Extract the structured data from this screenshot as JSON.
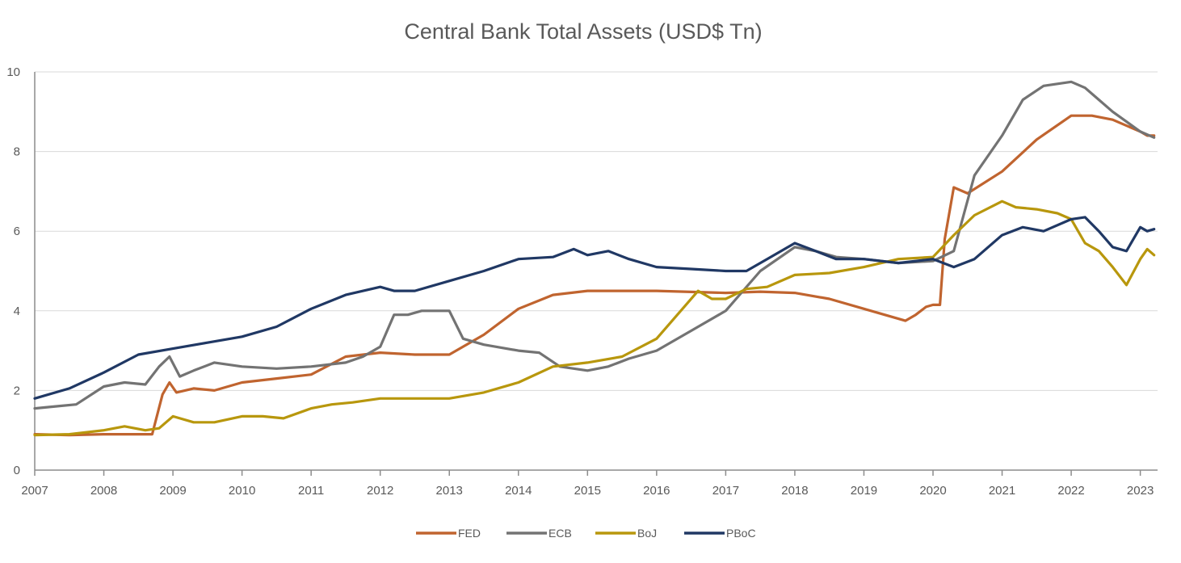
{
  "chart_data": {
    "type": "line",
    "title": "Central Bank Total Assets (USD$ Tn)",
    "xlabel": "",
    "ylabel": "",
    "xlim": [
      2007.0,
      2023.25
    ],
    "ylim": [
      0,
      10
    ],
    "yticks": [
      0,
      2,
      4,
      6,
      8,
      10
    ],
    "xticks": [
      2007,
      2008,
      2009,
      2010,
      2011,
      2012,
      2013,
      2014,
      2015,
      2016,
      2017,
      2018,
      2019,
      2020,
      2021,
      2022,
      2023
    ],
    "xtick_labels": [
      "2007",
      "2008",
      "2009",
      "2010",
      "2011",
      "2012",
      "2013",
      "2014",
      "2015",
      "2016",
      "2017",
      "2018",
      "2019",
      "2020",
      "2021",
      "2022",
      "2023"
    ],
    "ytick_labels": [
      "0",
      "2",
      "4",
      "6",
      "8",
      "10"
    ],
    "grid": true,
    "legend_position": "bottom",
    "series": [
      {
        "name": "FED",
        "color": "#c0642f",
        "x": [
          2007.0,
          2007.5,
          2008.0,
          2008.5,
          2008.7,
          2008.85,
          2008.95,
          2009.05,
          2009.3,
          2009.6,
          2010.0,
          2010.5,
          2011.0,
          2011.5,
          2012.0,
          2012.5,
          2013.0,
          2013.5,
          2014.0,
          2014.5,
          2015.0,
          2016.0,
          2017.0,
          2017.5,
          2018.0,
          2018.5,
          2019.0,
          2019.3,
          2019.6,
          2019.75,
          2019.9,
          2020.0,
          2020.1,
          2020.17,
          2020.3,
          2020.5,
          2021.0,
          2021.5,
          2022.0,
          2022.3,
          2022.6,
          2023.0,
          2023.1,
          2023.2
        ],
        "values": [
          0.9,
          0.88,
          0.9,
          0.9,
          0.9,
          1.9,
          2.2,
          1.95,
          2.05,
          2.0,
          2.2,
          2.3,
          2.4,
          2.85,
          2.95,
          2.9,
          2.9,
          3.4,
          4.05,
          4.4,
          4.5,
          4.5,
          4.45,
          4.48,
          4.45,
          4.3,
          4.05,
          3.9,
          3.75,
          3.9,
          4.1,
          4.15,
          4.15,
          5.8,
          7.1,
          6.95,
          7.5,
          8.3,
          8.9,
          8.9,
          8.8,
          8.5,
          8.4,
          8.4
        ]
      },
      {
        "name": "ECB",
        "color": "#737373",
        "x": [
          2007.0,
          2007.3,
          2007.6,
          2008.0,
          2008.3,
          2008.6,
          2008.8,
          2008.95,
          2009.1,
          2009.3,
          2009.6,
          2010.0,
          2010.5,
          2011.0,
          2011.5,
          2011.75,
          2012.0,
          2012.2,
          2012.4,
          2012.6,
          2013.0,
          2013.2,
          2013.5,
          2014.0,
          2014.3,
          2014.6,
          2015.0,
          2015.3,
          2015.6,
          2016.0,
          2016.5,
          2017.0,
          2017.5,
          2018.0,
          2018.3,
          2018.6,
          2019.0,
          2019.5,
          2020.0,
          2020.3,
          2020.6,
          2021.0,
          2021.3,
          2021.6,
          2022.0,
          2022.2,
          2022.4,
          2022.6,
          2022.8,
          2023.0,
          2023.2
        ],
        "values": [
          1.55,
          1.6,
          1.65,
          2.1,
          2.2,
          2.15,
          2.6,
          2.85,
          2.35,
          2.5,
          2.7,
          2.6,
          2.55,
          2.6,
          2.7,
          2.85,
          3.1,
          3.9,
          3.9,
          4.0,
          4.0,
          3.3,
          3.15,
          3.0,
          2.95,
          2.6,
          2.5,
          2.6,
          2.8,
          3.0,
          3.5,
          4.0,
          5.0,
          5.6,
          5.5,
          5.35,
          5.3,
          5.2,
          5.25,
          5.5,
          7.4,
          8.4,
          9.3,
          9.65,
          9.75,
          9.6,
          9.3,
          9.0,
          8.75,
          8.5,
          8.35
        ]
      },
      {
        "name": "BoJ",
        "color": "#b8970d",
        "x": [
          2007.0,
          2007.5,
          2008.0,
          2008.3,
          2008.6,
          2008.8,
          2009.0,
          2009.3,
          2009.6,
          2010.0,
          2010.3,
          2010.6,
          2011.0,
          2011.3,
          2011.6,
          2012.0,
          2012.5,
          2013.0,
          2013.5,
          2014.0,
          2014.5,
          2015.0,
          2015.5,
          2016.0,
          2016.3,
          2016.6,
          2016.8,
          2017.0,
          2017.3,
          2017.6,
          2018.0,
          2018.5,
          2019.0,
          2019.5,
          2020.0,
          2020.3,
          2020.6,
          2021.0,
          2021.2,
          2021.5,
          2021.8,
          2022.0,
          2022.2,
          2022.4,
          2022.6,
          2022.8,
          2023.0,
          2023.1,
          2023.2
        ],
        "values": [
          0.88,
          0.9,
          1.0,
          1.1,
          1.0,
          1.05,
          1.35,
          1.2,
          1.2,
          1.35,
          1.35,
          1.3,
          1.55,
          1.65,
          1.7,
          1.8,
          1.8,
          1.8,
          1.95,
          2.2,
          2.6,
          2.7,
          2.85,
          3.3,
          3.9,
          4.5,
          4.3,
          4.3,
          4.55,
          4.6,
          4.9,
          4.95,
          5.1,
          5.3,
          5.35,
          5.9,
          6.4,
          6.75,
          6.6,
          6.55,
          6.45,
          6.3,
          5.7,
          5.5,
          5.1,
          4.65,
          5.3,
          5.55,
          5.4
        ]
      },
      {
        "name": "PBoC",
        "color": "#203864",
        "x": [
          2007.0,
          2007.5,
          2008.0,
          2008.5,
          2009.0,
          2009.5,
          2010.0,
          2010.5,
          2011.0,
          2011.5,
          2012.0,
          2012.2,
          2012.5,
          2013.0,
          2013.5,
          2014.0,
          2014.5,
          2014.8,
          2015.0,
          2015.3,
          2015.6,
          2016.0,
          2016.5,
          2017.0,
          2017.3,
          2017.6,
          2018.0,
          2018.3,
          2018.6,
          2019.0,
          2019.5,
          2020.0,
          2020.3,
          2020.6,
          2021.0,
          2021.3,
          2021.6,
          2022.0,
          2022.2,
          2022.4,
          2022.6,
          2022.8,
          2023.0,
          2023.1,
          2023.2
        ],
        "values": [
          1.8,
          2.05,
          2.45,
          2.9,
          3.05,
          3.2,
          3.35,
          3.6,
          4.05,
          4.4,
          4.6,
          4.5,
          4.5,
          4.75,
          5.0,
          5.3,
          5.35,
          5.55,
          5.4,
          5.5,
          5.3,
          5.1,
          5.05,
          5.0,
          5.0,
          5.3,
          5.7,
          5.5,
          5.3,
          5.3,
          5.2,
          5.3,
          5.1,
          5.3,
          5.9,
          6.1,
          6.0,
          6.3,
          6.35,
          6.0,
          5.6,
          5.5,
          6.1,
          6.0,
          6.05
        ]
      }
    ]
  }
}
